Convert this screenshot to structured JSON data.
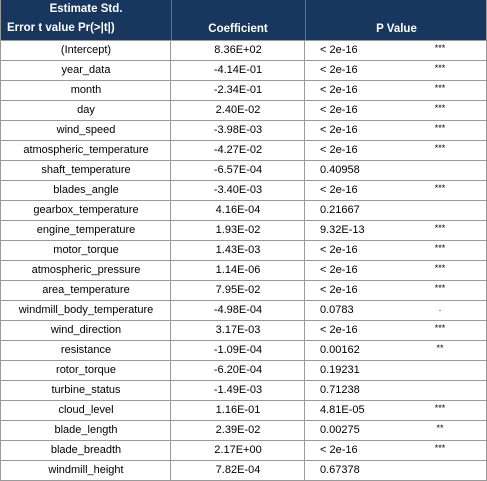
{
  "header": {
    "col1_line1": "Estimate Std.",
    "col1_line2": "Error t value Pr(>|t|)",
    "col2": "Coefficient",
    "col3": "P Value"
  },
  "rows": [
    {
      "name": "(Intercept)",
      "coef": "8.36E+02",
      "p": "< 2e-16",
      "sig": "***"
    },
    {
      "name": "year_data",
      "coef": "-4.14E-01",
      "p": "< 2e-16",
      "sig": "***"
    },
    {
      "name": "month",
      "coef": "-2.34E-01",
      "p": "< 2e-16",
      "sig": "***"
    },
    {
      "name": "day",
      "coef": "2.40E-02",
      "p": "< 2e-16",
      "sig": "***"
    },
    {
      "name": "wind_speed",
      "coef": "-3.98E-03",
      "p": "< 2e-16",
      "sig": "***"
    },
    {
      "name": "atmospheric_temperature",
      "coef": "-4.27E-02",
      "p": "< 2e-16",
      "sig": "***"
    },
    {
      "name": "shaft_temperature",
      "coef": "-6.57E-04",
      "p": "0.40958",
      "sig": ""
    },
    {
      "name": "blades_angle",
      "coef": "-3.40E-03",
      "p": "< 2e-16",
      "sig": "***"
    },
    {
      "name": "gearbox_temperature",
      "coef": "4.16E-04",
      "p": "0.21667",
      "sig": ""
    },
    {
      "name": "engine_temperature",
      "coef": "1.93E-02",
      "p": "9.32E-13",
      "sig": "***"
    },
    {
      "name": "motor_torque",
      "coef": "1.43E-03",
      "p": "< 2e-16",
      "sig": "***"
    },
    {
      "name": "atmospheric_pressure",
      "coef": "1.14E-06",
      "p": "< 2e-16",
      "sig": "***"
    },
    {
      "name": "area_temperature",
      "coef": "7.95E-02",
      "p": "< 2e-16",
      "sig": "***"
    },
    {
      "name": "windmill_body_temperature",
      "coef": "-4.98E-04",
      "p": "0.0783",
      "sig": "."
    },
    {
      "name": "wind_direction",
      "coef": "3.17E-03",
      "p": "< 2e-16",
      "sig": "***"
    },
    {
      "name": "resistance",
      "coef": "-1.09E-04",
      "p": "0.00162",
      "sig": "**"
    },
    {
      "name": "rotor_torque",
      "coef": "-6.20E-04",
      "p": "0.19231",
      "sig": ""
    },
    {
      "name": "turbine_status",
      "coef": "-1.49E-03",
      "p": "0.71238",
      "sig": ""
    },
    {
      "name": "cloud_level",
      "coef": "1.16E-01",
      "p": "4.81E-05",
      "sig": "***"
    },
    {
      "name": "blade_length",
      "coef": "2.39E-02",
      "p": "0.00275",
      "sig": "**"
    },
    {
      "name": "blade_breadth",
      "coef": "2.17E+00",
      "p": "< 2e-16",
      "sig": "***"
    },
    {
      "name": "windmill_height",
      "coef": "7.82E-04",
      "p": "0.67378",
      "sig": ""
    }
  ]
}
